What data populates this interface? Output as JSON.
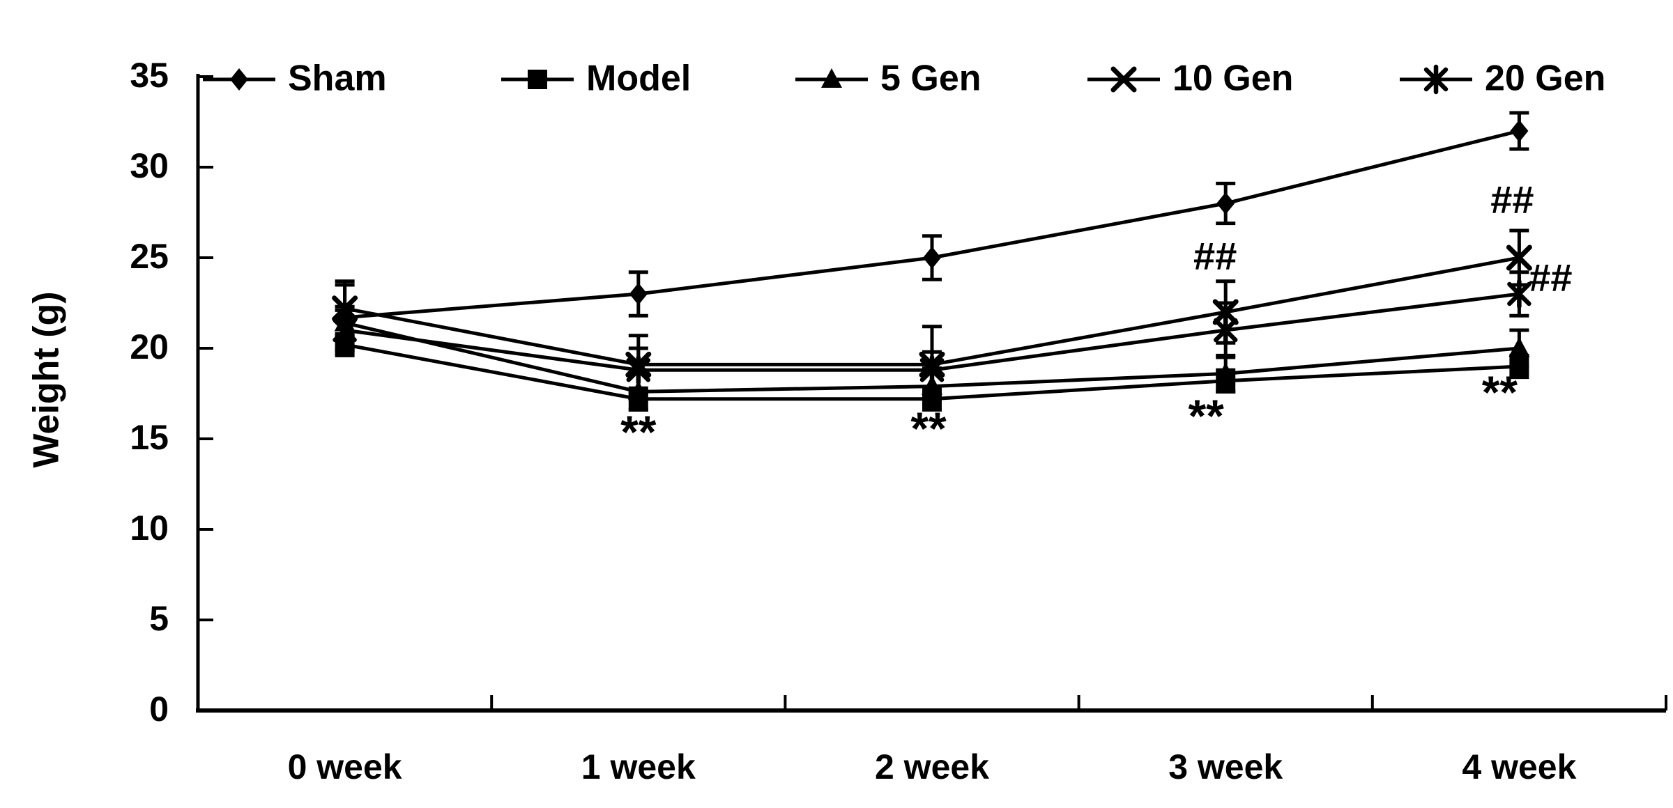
{
  "page": {
    "background_color": "#ffffff",
    "ink_color": "#000000"
  },
  "chart_data": {
    "type": "line",
    "title": "",
    "xlabel": "",
    "ylabel": "Weight (g)",
    "ylim": [
      0,
      35
    ],
    "yticks": [
      0,
      5,
      10,
      15,
      20,
      25,
      30,
      35
    ],
    "grid": false,
    "legend_position": "top",
    "categories": [
      "0 week",
      "1 week",
      "2 week",
      "3 week",
      "4 week"
    ],
    "series": [
      {
        "name": "Sham",
        "marker": "diamond-icon",
        "values": [
          21.7,
          23.0,
          25.0,
          28.0,
          32.0
        ],
        "err": [
          1.8,
          1.2,
          1.2,
          1.1,
          1.0
        ]
      },
      {
        "name": "Model",
        "marker": "square-icon",
        "values": [
          20.2,
          17.2,
          17.2,
          18.2,
          19.0
        ],
        "err": [
          0.6,
          0.6,
          0.6,
          0.6,
          0.6
        ]
      },
      {
        "name": "5 Gen",
        "marker": "triangle-icon",
        "values": [
          21.4,
          17.6,
          17.9,
          18.6,
          20.0
        ],
        "err": [
          0.9,
          1.0,
          1.0,
          1.0,
          1.0
        ]
      },
      {
        "name": "10 Gen",
        "marker": "x-icon",
        "values": [
          22.2,
          19.1,
          19.1,
          22.0,
          25.0
        ],
        "err": [
          1.5,
          1.6,
          2.1,
          1.7,
          1.5
        ]
      },
      {
        "name": "20 Gen",
        "marker": "asterisk-icon",
        "values": [
          21.0,
          18.8,
          18.8,
          21.0,
          23.0
        ],
        "err": [
          1.1,
          1.2,
          1.0,
          1.5,
          1.2
        ]
      }
    ],
    "annotations": [
      {
        "text": "**",
        "week": 1,
        "value": 15.7,
        "dx": 0
      },
      {
        "text": "**",
        "week": 2,
        "value": 15.9,
        "dx": -5
      },
      {
        "text": "**",
        "week": 3,
        "value": 16.6,
        "dx": -28
      },
      {
        "text": "**",
        "week": 4,
        "value": 17.9,
        "dx": -28
      },
      {
        "text": "##",
        "week": 3,
        "value": 25.0,
        "dx": -15
      },
      {
        "text": "##",
        "week": 4,
        "value": 28.1,
        "dx": -10
      },
      {
        "text": "##",
        "week": 4,
        "value": 23.8,
        "dx": 45
      }
    ]
  }
}
